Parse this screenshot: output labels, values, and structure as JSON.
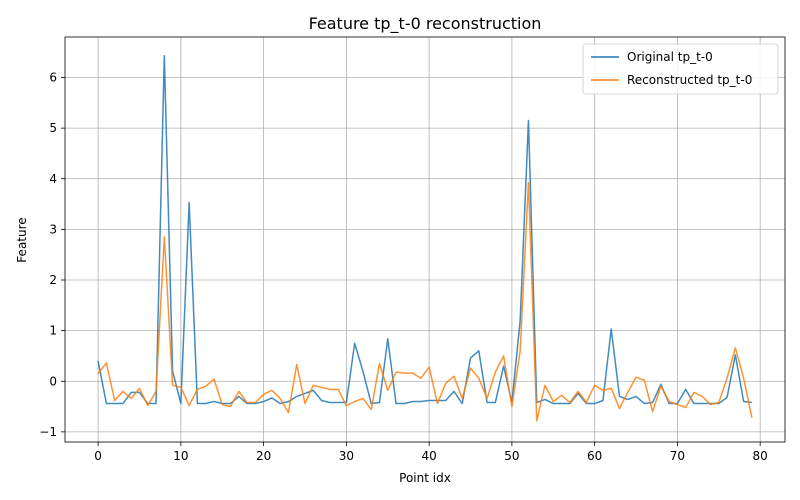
{
  "chart_data": {
    "type": "line",
    "title": "Feature tp_t-0 reconstruction",
    "xlabel": "Point idx",
    "ylabel": "Feature",
    "xlim": [
      -4,
      83
    ],
    "ylim": [
      -1.2,
      6.8
    ],
    "xticks": [
      0,
      10,
      20,
      30,
      40,
      50,
      60,
      70,
      80
    ],
    "yticks": [
      -1,
      0,
      1,
      2,
      3,
      4,
      5,
      6
    ],
    "xtick_labels": [
      "0",
      "10",
      "20",
      "30",
      "40",
      "50",
      "60",
      "70",
      "80"
    ],
    "ytick_labels": [
      "−1",
      "0",
      "1",
      "2",
      "3",
      "4",
      "5",
      "6"
    ],
    "grid": true,
    "legend_position": "top-right",
    "series": [
      {
        "name": "Original tp_t-0",
        "color": "#1f77b4",
        "values": [
          0.4,
          -0.44,
          -0.44,
          -0.44,
          -0.22,
          -0.22,
          -0.44,
          -0.44,
          6.43,
          0.2,
          -0.44,
          3.53,
          -0.44,
          -0.44,
          -0.4,
          -0.44,
          -0.44,
          -0.3,
          -0.44,
          -0.44,
          -0.4,
          -0.33,
          -0.44,
          -0.4,
          -0.3,
          -0.24,
          -0.18,
          -0.38,
          -0.42,
          -0.42,
          -0.42,
          0.75,
          0.2,
          -0.44,
          -0.42,
          0.84,
          -0.44,
          -0.44,
          -0.4,
          -0.4,
          -0.38,
          -0.38,
          -0.38,
          -0.2,
          -0.44,
          0.46,
          0.6,
          -0.42,
          -0.42,
          0.3,
          -0.42,
          1.2,
          5.15,
          -0.42,
          -0.36,
          -0.44,
          -0.44,
          -0.44,
          -0.24,
          -0.44,
          -0.44,
          -0.38,
          1.03,
          -0.3,
          -0.36,
          -0.3,
          -0.44,
          -0.42,
          -0.06,
          -0.44,
          -0.44,
          -0.16,
          -0.44,
          -0.44,
          -0.44,
          -0.44,
          -0.32,
          0.52,
          -0.4,
          -0.42
        ]
      },
      {
        "name": "Reconstructed tp_t-0",
        "color": "#ff7f0e",
        "values": [
          0.15,
          0.36,
          -0.38,
          -0.2,
          -0.34,
          -0.14,
          -0.48,
          -0.2,
          2.85,
          -0.08,
          -0.12,
          -0.48,
          -0.16,
          -0.1,
          0.04,
          -0.46,
          -0.5,
          -0.2,
          -0.42,
          -0.42,
          -0.26,
          -0.18,
          -0.34,
          -0.62,
          0.33,
          -0.44,
          -0.08,
          -0.12,
          -0.16,
          -0.16,
          -0.48,
          -0.4,
          -0.34,
          -0.56,
          0.35,
          -0.18,
          0.18,
          0.16,
          0.16,
          0.06,
          0.28,
          -0.44,
          -0.04,
          0.1,
          -0.34,
          0.26,
          0.06,
          -0.34,
          0.18,
          0.5,
          -0.5,
          0.6,
          3.92,
          -0.78,
          -0.08,
          -0.4,
          -0.28,
          -0.42,
          -0.2,
          -0.42,
          -0.08,
          -0.18,
          -0.14,
          -0.54,
          -0.22,
          0.08,
          0.02,
          -0.6,
          -0.1,
          -0.4,
          -0.46,
          -0.52,
          -0.22,
          -0.3,
          -0.46,
          -0.42,
          0.06,
          0.66,
          0.06,
          -0.72
        ]
      }
    ]
  }
}
